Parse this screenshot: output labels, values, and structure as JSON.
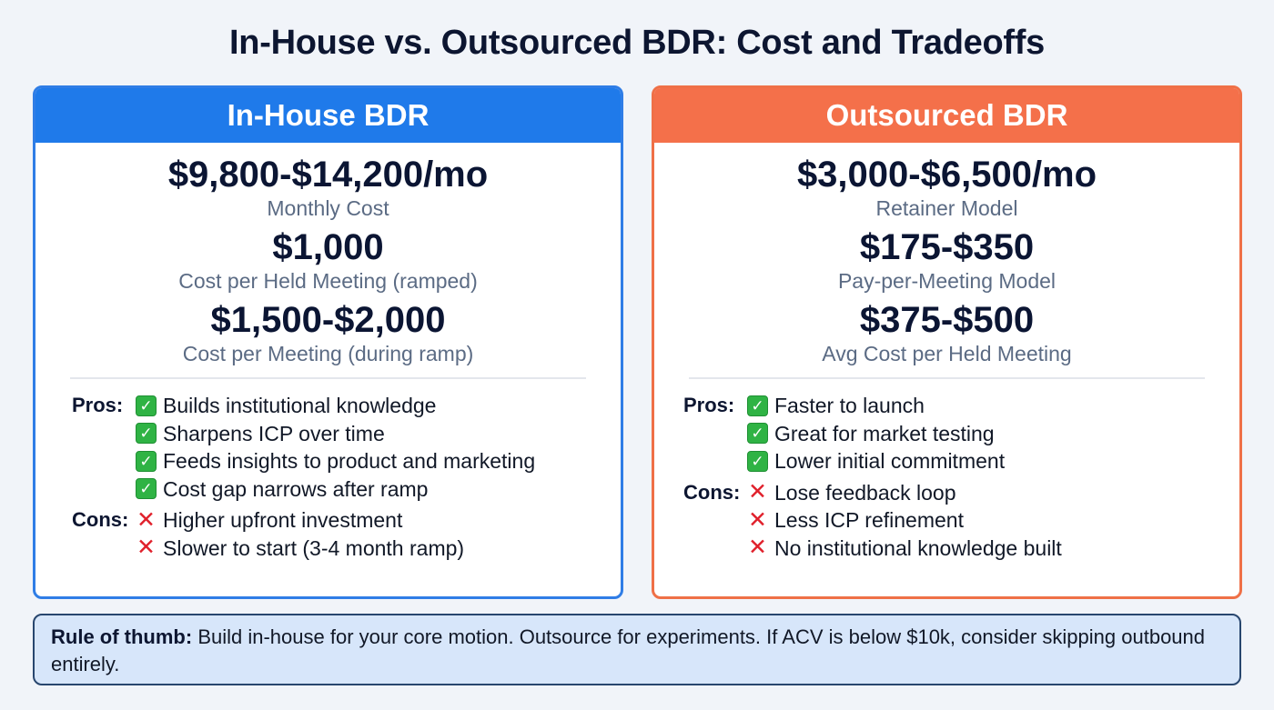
{
  "title": "In-House vs. Outsourced BDR: Cost and Tradeoffs",
  "colors": {
    "in_house_accent": "#1f7aea",
    "outsourced_accent": "#f4704a",
    "note_background": "#d7e6fa",
    "note_border": "#28466e",
    "check_green": "#2fb344",
    "cross_red": "#e0202b"
  },
  "in_house": {
    "header": "In-House BDR",
    "metrics": [
      {
        "value": "$9,800-$14,200/mo",
        "label": "Monthly Cost"
      },
      {
        "value": "$1,000",
        "label": "Cost per Held Meeting (ramped)"
      },
      {
        "value": "$1,500-$2,000",
        "label": "Cost per Meeting (during ramp)"
      }
    ],
    "pros_label": "Pros:",
    "pros": [
      "Builds institutional knowledge",
      "Sharpens ICP over time",
      "Feeds insights to product and marketing",
      "Cost gap narrows after ramp"
    ],
    "cons_label": "Cons:",
    "cons": [
      "Higher upfront investment",
      "Slower to start (3-4 month ramp)"
    ]
  },
  "outsourced": {
    "header": "Outsourced BDR",
    "metrics": [
      {
        "value": "$3,000-$6,500/mo",
        "label": "Retainer Model"
      },
      {
        "value": "$175-$350",
        "label": "Pay-per-Meeting Model"
      },
      {
        "value": "$375-$500",
        "label": "Avg Cost per Held Meeting"
      }
    ],
    "pros_label": "Pros:",
    "pros": [
      "Faster to launch",
      "Great for market testing",
      "Lower initial commitment"
    ],
    "cons_label": "Cons:",
    "cons": [
      "Lose feedback loop",
      "Less ICP refinement",
      "No institutional knowledge built"
    ]
  },
  "icons": {
    "check": "✓",
    "cross": "✕"
  },
  "note": {
    "label": "Rule of thumb:",
    "text": " Build in-house for your core motion. Outsource for experiments. If ACV is below $10k, consider skipping outbound entirely."
  }
}
